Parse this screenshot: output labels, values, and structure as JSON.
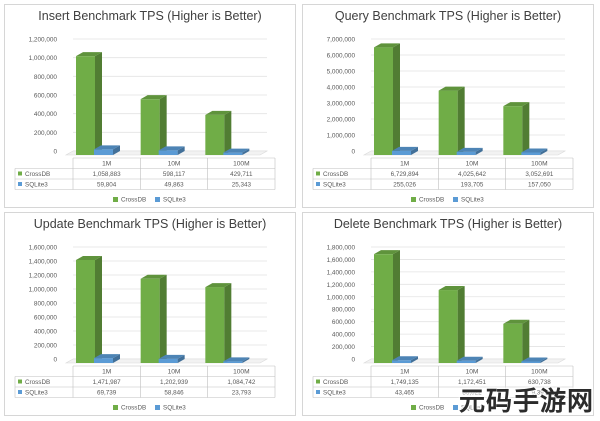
{
  "chart_data": [
    {
      "type": "bar",
      "title": "Insert Benchmark TPS (Higher is Better)",
      "categories": [
        "1M",
        "10M",
        "100M"
      ],
      "yticks": [
        "0",
        "200,000",
        "400,000",
        "600,000",
        "800,000",
        "1,000,000",
        "1,200,000"
      ],
      "ylim": [
        0,
        1200000
      ],
      "series": [
        {
          "name": "CrossDB",
          "values": [
            1058883,
            598117,
            429711
          ],
          "labels": [
            "1,058,883",
            "598,117",
            "429,711"
          ]
        },
        {
          "name": "SQLite3",
          "values": [
            59804,
            49863,
            25343
          ],
          "labels": [
            "59,804",
            "49,863",
            "25,343"
          ]
        }
      ],
      "legend": "bottom",
      "grid": true
    },
    {
      "type": "bar",
      "title": "Query Benchmark TPS (Higher is Better)",
      "categories": [
        "1M",
        "10M",
        "100M"
      ],
      "yticks": [
        "0",
        "1,000,000",
        "2,000,000",
        "3,000,000",
        "4,000,000",
        "5,000,000",
        "6,000,000",
        "7,000,000"
      ],
      "ylim": [
        0,
        7000000
      ],
      "series": [
        {
          "name": "CrossDB",
          "values": [
            6729894,
            4025642,
            3052691
          ],
          "labels": [
            "6,729,894",
            "4,025,642",
            "3,052,691"
          ]
        },
        {
          "name": "SQLite3",
          "values": [
            255026,
            193705,
            157050
          ],
          "labels": [
            "255,026",
            "193,705",
            "157,050"
          ]
        }
      ],
      "legend": "bottom",
      "grid": true
    },
    {
      "type": "bar",
      "title": "Update Benchmark TPS (Higher is Better)",
      "categories": [
        "1M",
        "10M",
        "100M"
      ],
      "yticks": [
        "0",
        "200,000",
        "400,000",
        "600,000",
        "800,000",
        "1,000,000",
        "1,200,000",
        "1,400,000",
        "1,600,000"
      ],
      "ylim": [
        0,
        1600000
      ],
      "series": [
        {
          "name": "CrossDB",
          "values": [
            1471987,
            1202939,
            1084742
          ],
          "labels": [
            "1,471,987",
            "1,202,939",
            "1,084,742"
          ]
        },
        {
          "name": "SQLite3",
          "values": [
            69739,
            58846,
            23793
          ],
          "labels": [
            "69,739",
            "58,846",
            "23,793"
          ]
        }
      ],
      "legend": "bottom",
      "grid": true
    },
    {
      "type": "bar",
      "title": "Delete Benchmark TPS (Higher is Better)",
      "categories": [
        "1M",
        "10M",
        "100M"
      ],
      "yticks": [
        "0",
        "200,000",
        "400,000",
        "600,000",
        "800,000",
        "1,000,000",
        "1,200,000",
        "1,400,000",
        "1,600,000",
        "1,800,000"
      ],
      "ylim": [
        0,
        1800000
      ],
      "series": [
        {
          "name": "CrossDB",
          "values": [
            1749135,
            1172451,
            630738
          ],
          "labels": [
            "1,749,135",
            "1,172,451",
            "630,738"
          ]
        },
        {
          "name": "SQLite3",
          "values": [
            43465,
            36022,
            9397
          ],
          "labels": [
            "43,465",
            "36,022",
            "9,397"
          ]
        }
      ],
      "legend": "bottom",
      "grid": true
    }
  ],
  "colors": {
    "CrossDB": "#70ad47",
    "SQLite3": "#5b9bd5"
  },
  "watermark": "元码手游网"
}
